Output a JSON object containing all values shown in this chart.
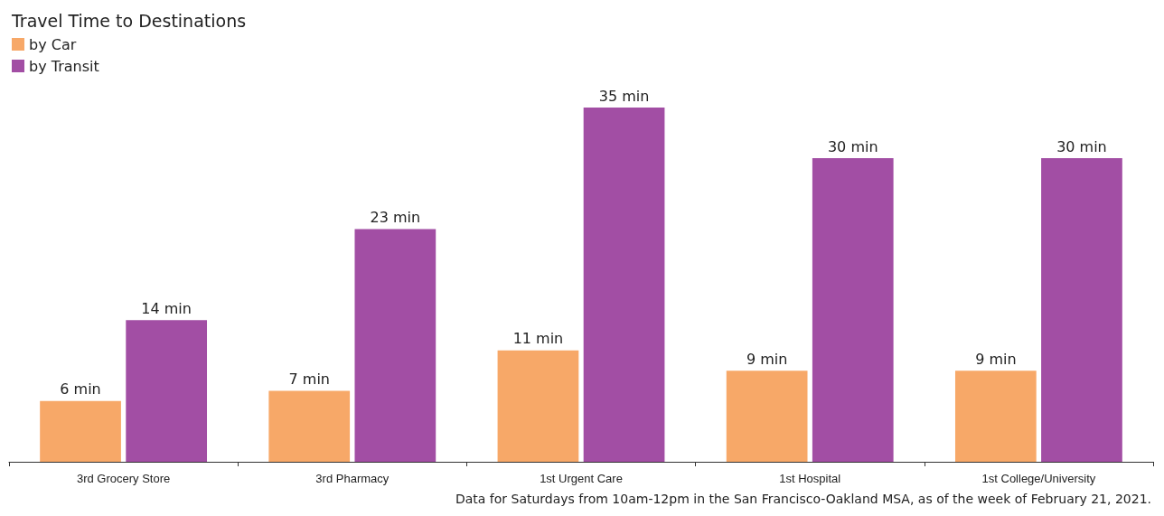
{
  "chart_data": {
    "type": "bar",
    "title": "Travel Time to Destinations",
    "categories": [
      "3rd Grocery Store",
      "3rd Pharmacy",
      "1st Urgent Care",
      "1st Hospital",
      "1st College/University"
    ],
    "series": [
      {
        "name": "by Car",
        "color": "#f7a868",
        "values": [
          6,
          7,
          11,
          9,
          9
        ],
        "value_labels": [
          "6 min",
          "7 min",
          "11 min",
          "9 min",
          "9 min"
        ]
      },
      {
        "name": "by Transit",
        "color": "#a24ea4",
        "values": [
          14,
          23,
          35,
          30,
          30
        ],
        "value_labels": [
          "14 min",
          "23 min",
          "35 min",
          "30 min",
          "30 min"
        ]
      }
    ],
    "legend": "top left",
    "grid": false,
    "annotations": [
      "Data for Saturdays from 10am-12pm in the San Francisco-Oakland MSA, as of the week of February 21, 2021."
    ]
  }
}
